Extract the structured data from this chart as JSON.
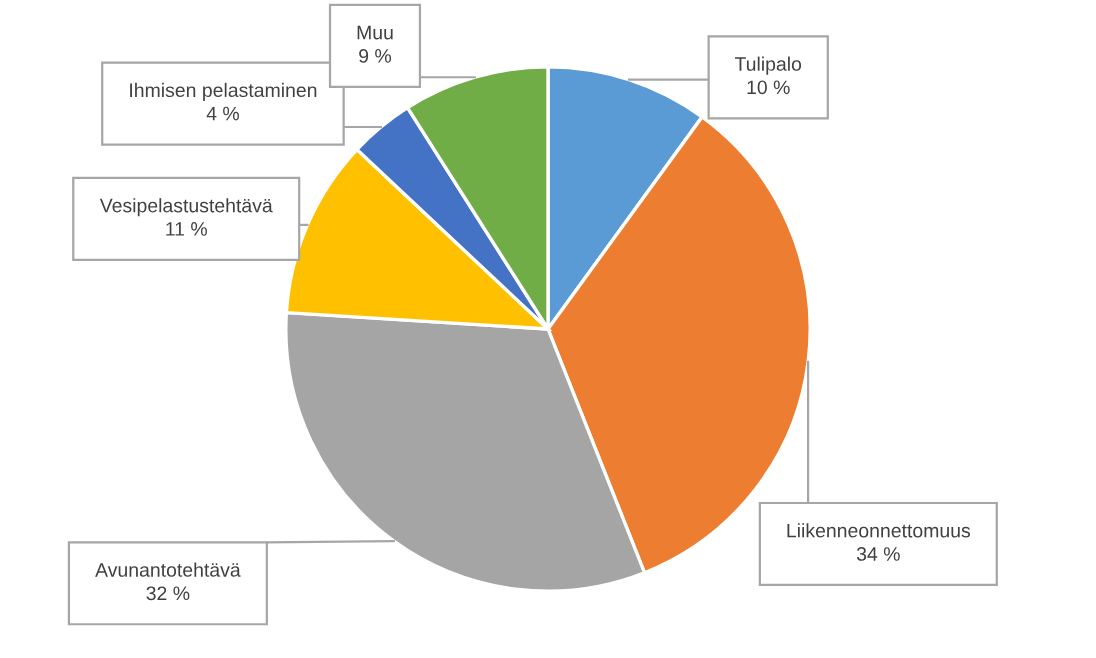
{
  "chart_data": {
    "type": "pie",
    "categories": [
      "Tulipalo",
      "Liikenneonnettomuus",
      "Avunantotehtävä",
      "Vesipelastustehtävä",
      "Ihmisen pelastaminen",
      "Muu"
    ],
    "values": [
      10,
      34,
      32,
      11,
      4,
      9
    ],
    "value_labels": [
      "10 %",
      "34 %",
      "32 %",
      "11 %",
      "4 %",
      "9 %"
    ],
    "colors": [
      "#5b9bd5",
      "#ed7d31",
      "#a5a5a5",
      "#ffc000",
      "#4472c4",
      "#70ad47"
    ]
  }
}
